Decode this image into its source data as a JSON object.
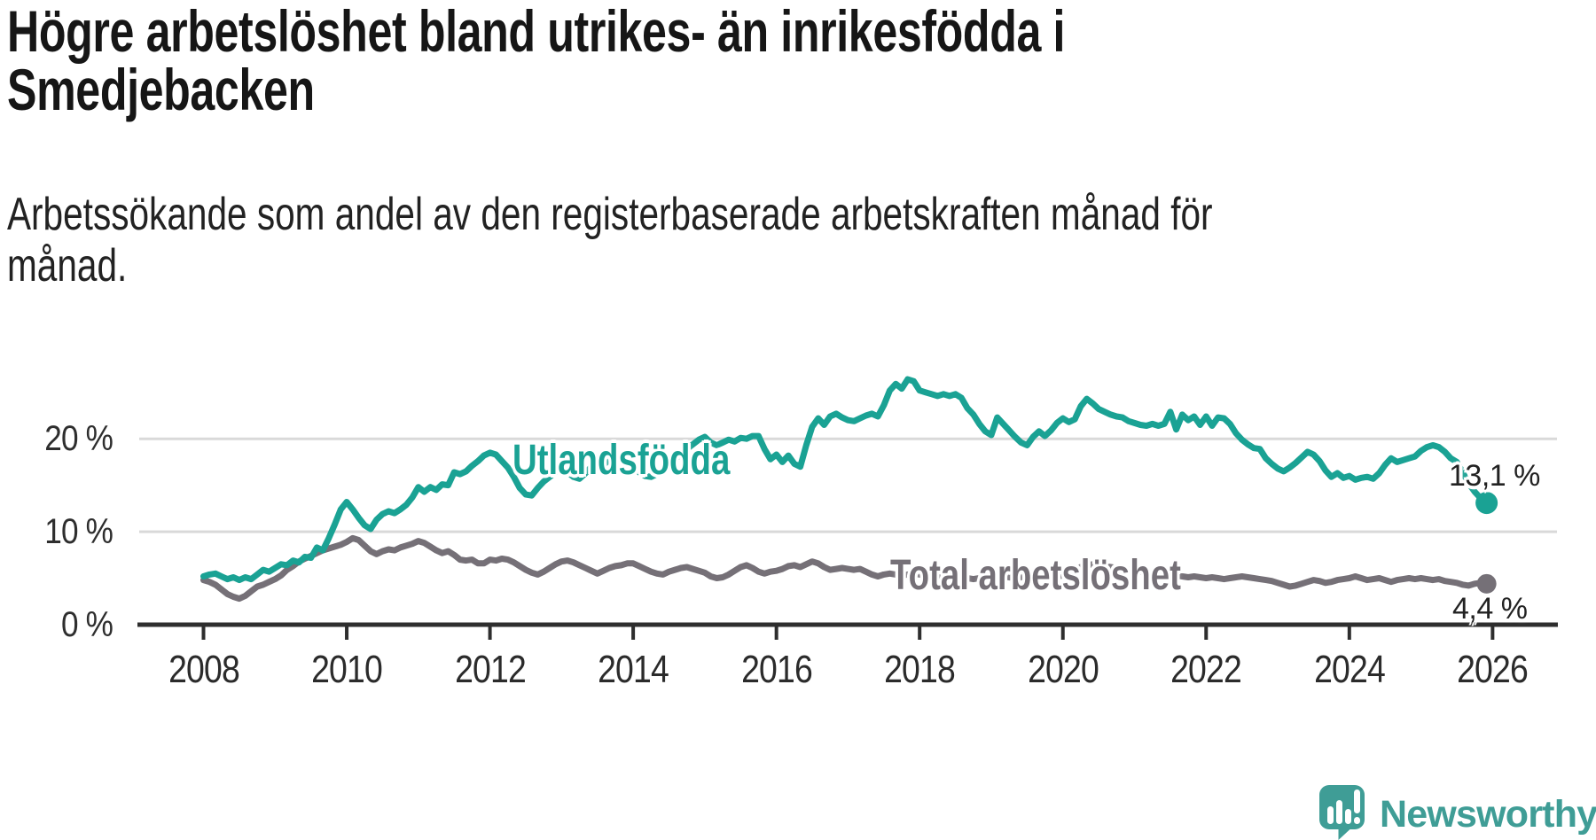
{
  "title_lines": [
    "Högre arbetslöshet bland utrikes- än inrikesfödda i",
    "Smedjebacken"
  ],
  "subtitle_lines": [
    "Arbetssökande som andel av den registerbaserade arbetskraften månad för",
    "månad."
  ],
  "colors": {
    "accent_teal": "#1aa294",
    "line_gray": "#757077",
    "grid": "#d9d9d9",
    "axis": "#2e2e2e",
    "text_dark": "#161616",
    "logo_teal": "#3f9d96"
  },
  "chart_data": {
    "type": "line",
    "x_unit": "month",
    "x_start": "2008-01",
    "x_end": "2025-12",
    "xlim": [
      2007.6,
      2026.9
    ],
    "ylim": [
      0,
      29
    ],
    "grid": true,
    "legend": "inline-labels",
    "x_ticks": [
      2008,
      2010,
      2012,
      2014,
      2016,
      2018,
      2020,
      2022,
      2024,
      2026
    ],
    "y_ticks": [
      {
        "value": 0,
        "label": "0 %"
      },
      {
        "value": 10,
        "label": "10 %"
      },
      {
        "value": 20,
        "label": "20 %"
      }
    ],
    "series": [
      {
        "name": "Utlandsfödda",
        "color": "#1aa294",
        "end_label": "13,1 %",
        "values": [
          5.2,
          5.4,
          5.5,
          5.2,
          4.9,
          5.1,
          4.8,
          5.1,
          4.9,
          5.4,
          5.9,
          5.7,
          6.1,
          6.5,
          6.4,
          6.9,
          6.7,
          7.3,
          7.2,
          8.3,
          8.0,
          9.3,
          10.8,
          12.4,
          13.2,
          12.4,
          11.5,
          10.7,
          10.3,
          11.3,
          11.9,
          12.2,
          12.0,
          12.4,
          12.9,
          13.7,
          14.8,
          14.3,
          14.8,
          14.5,
          15.1,
          15.0,
          16.4,
          16.2,
          16.5,
          17.1,
          17.6,
          18.2,
          18.5,
          18.3,
          17.6,
          16.9,
          15.9,
          14.7,
          14.0,
          13.9,
          14.7,
          15.4,
          15.9,
          16.4,
          16.9,
          16.4,
          15.9,
          15.7,
          16.3,
          17.0,
          17.4,
          17.2,
          17.7,
          18.1,
          17.8,
          17.3,
          16.9,
          16.4,
          16.0,
          15.9,
          16.2,
          16.8,
          17.3,
          17.8,
          18.4,
          18.9,
          19.4,
          19.9,
          20.2,
          19.6,
          19.3,
          19.6,
          19.9,
          19.7,
          20.1,
          20.0,
          20.3,
          20.3,
          18.9,
          17.8,
          18.3,
          17.5,
          18.2,
          17.3,
          17.0,
          19.3,
          21.3,
          22.2,
          21.5,
          22.4,
          22.7,
          22.3,
          22.0,
          21.9,
          22.2,
          22.5,
          22.7,
          22.4,
          23.6,
          25.2,
          25.9,
          25.4,
          26.4,
          26.2,
          25.2,
          25.0,
          24.8,
          24.6,
          24.8,
          24.6,
          24.8,
          24.4,
          23.3,
          22.6,
          21.6,
          20.8,
          20.4,
          22.3,
          21.6,
          20.9,
          20.2,
          19.6,
          19.3,
          20.2,
          20.8,
          20.3,
          20.9,
          21.7,
          22.2,
          21.8,
          22.1,
          23.5,
          24.3,
          23.8,
          23.2,
          22.9,
          22.6,
          22.4,
          22.3,
          21.9,
          21.7,
          21.5,
          21.4,
          21.6,
          21.4,
          21.6,
          22.9,
          21.0,
          22.6,
          22.0,
          22.4,
          21.5,
          22.4,
          21.4,
          22.3,
          22.2,
          21.6,
          20.6,
          19.9,
          19.4,
          19.0,
          18.9,
          17.9,
          17.3,
          16.8,
          16.5,
          16.9,
          17.4,
          18.0,
          18.6,
          18.3,
          17.6,
          16.6,
          15.9,
          16.3,
          15.8,
          16.0,
          15.6,
          15.8,
          15.9,
          15.7,
          16.3,
          17.2,
          17.9,
          17.5,
          17.7,
          17.9,
          18.1,
          18.7,
          19.1,
          19.3,
          19.1,
          18.6,
          17.9,
          17.5,
          16.4,
          15.2,
          14.3,
          13.6,
          13.1
        ]
      },
      {
        "name": "Total arbetslöshet",
        "color": "#757077",
        "end_label": "4,4 %",
        "values": [
          4.8,
          4.6,
          4.3,
          3.8,
          3.3,
          3.0,
          2.8,
          3.1,
          3.6,
          4.1,
          4.3,
          4.6,
          4.9,
          5.3,
          5.9,
          6.3,
          6.8,
          7.1,
          7.4,
          7.7,
          8.0,
          8.2,
          8.4,
          8.6,
          8.9,
          9.3,
          9.1,
          8.5,
          7.9,
          7.6,
          7.9,
          8.1,
          8.0,
          8.3,
          8.5,
          8.7,
          9.0,
          8.8,
          8.4,
          8.0,
          7.7,
          7.9,
          7.5,
          7.0,
          6.9,
          7.0,
          6.6,
          6.6,
          7.0,
          6.9,
          7.1,
          7.0,
          6.7,
          6.3,
          5.9,
          5.6,
          5.4,
          5.7,
          6.1,
          6.5,
          6.8,
          6.9,
          6.7,
          6.4,
          6.1,
          5.8,
          5.5,
          5.8,
          6.1,
          6.3,
          6.4,
          6.6,
          6.6,
          6.3,
          6.0,
          5.7,
          5.5,
          5.4,
          5.7,
          5.9,
          6.1,
          6.2,
          6.0,
          5.8,
          5.6,
          5.2,
          5.0,
          5.1,
          5.4,
          5.8,
          6.2,
          6.4,
          6.1,
          5.7,
          5.5,
          5.7,
          5.8,
          6.0,
          6.3,
          6.4,
          6.2,
          6.5,
          6.8,
          6.6,
          6.2,
          5.9,
          6.0,
          6.1,
          6.0,
          5.9,
          6.0,
          5.7,
          5.4,
          5.2,
          5.4,
          5.5,
          5.4,
          5.3,
          5.4,
          5.5,
          5.4,
          5.3,
          5.2,
          5.1,
          5.0,
          5.1,
          5.2,
          5.1,
          5.0,
          4.9,
          5.0,
          5.1,
          5.0,
          5.1,
          5.2,
          5.1,
          5.0,
          5.1,
          5.3,
          5.2,
          5.1,
          5.0,
          5.1,
          5.2,
          5.3,
          5.5,
          5.8,
          6.2,
          6.4,
          6.5,
          6.4,
          6.3,
          6.2,
          6.1,
          6.0,
          5.9,
          5.8,
          5.7,
          5.6,
          5.5,
          5.4,
          5.3,
          5.4,
          5.3,
          5.2,
          5.1,
          5.2,
          5.1,
          5.0,
          5.1,
          5.0,
          4.9,
          5.0,
          5.1,
          5.2,
          5.1,
          5.0,
          4.9,
          4.8,
          4.7,
          4.5,
          4.3,
          4.1,
          4.2,
          4.4,
          4.6,
          4.8,
          4.7,
          4.5,
          4.6,
          4.8,
          4.9,
          5.0,
          5.2,
          5.0,
          4.8,
          4.9,
          5.0,
          4.8,
          4.6,
          4.8,
          4.9,
          5.0,
          4.9,
          5.0,
          4.9,
          4.8,
          4.9,
          4.7,
          4.6,
          4.5,
          4.3,
          4.2,
          4.4,
          4.5,
          4.4
        ]
      }
    ]
  },
  "logo": {
    "wordmark": "Newsworthy",
    "icon": "newsworthy-speech-bubble-chart-icon"
  }
}
